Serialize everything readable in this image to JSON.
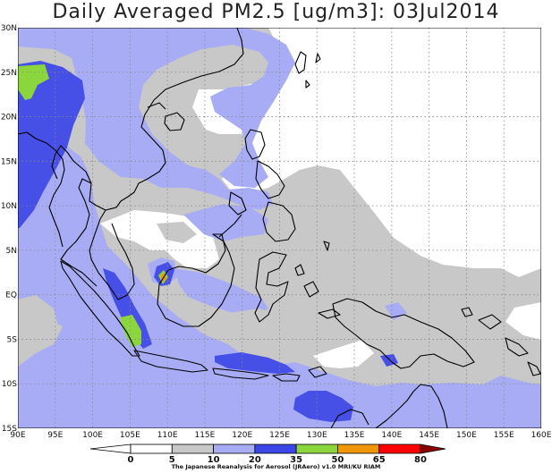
{
  "title": "Daily Averaged PM2.5 [ug/m3]: 03Jul2014",
  "credit": "The Japanese Reanalysis for Aerosol (JRAero) v1.0 MRI/KU RIAM",
  "lon_labels": [
    "90E",
    "95E",
    "100E",
    "105E",
    "110E",
    "115E",
    "120E",
    "125E",
    "130E",
    "135E",
    "140E",
    "145E",
    "150E",
    "155E",
    "160E"
  ],
  "lat_labels": [
    "30N",
    "25N",
    "20N",
    "15N",
    "10N",
    "5N",
    "EQ",
    "5S",
    "10S",
    "15S"
  ],
  "colorbar": {
    "ticks": [
      "0",
      "5",
      "10",
      "20",
      "35",
      "50",
      "65",
      "80"
    ],
    "colors": [
      "#ffffff",
      "#c8c8c8",
      "#a7acf5",
      "#3c46e6",
      "#8ad63c",
      "#f0960a",
      "#ff0000"
    ],
    "under_color": "#ffffff",
    "over_color": "#8c0000"
  },
  "palette": {
    "gray": "#c8c8c8",
    "lightblue": "#a7acf5",
    "blue": "#4650e6",
    "green": "#8ad63c",
    "orange": "#f0960a",
    "coast": "#000000"
  }
}
